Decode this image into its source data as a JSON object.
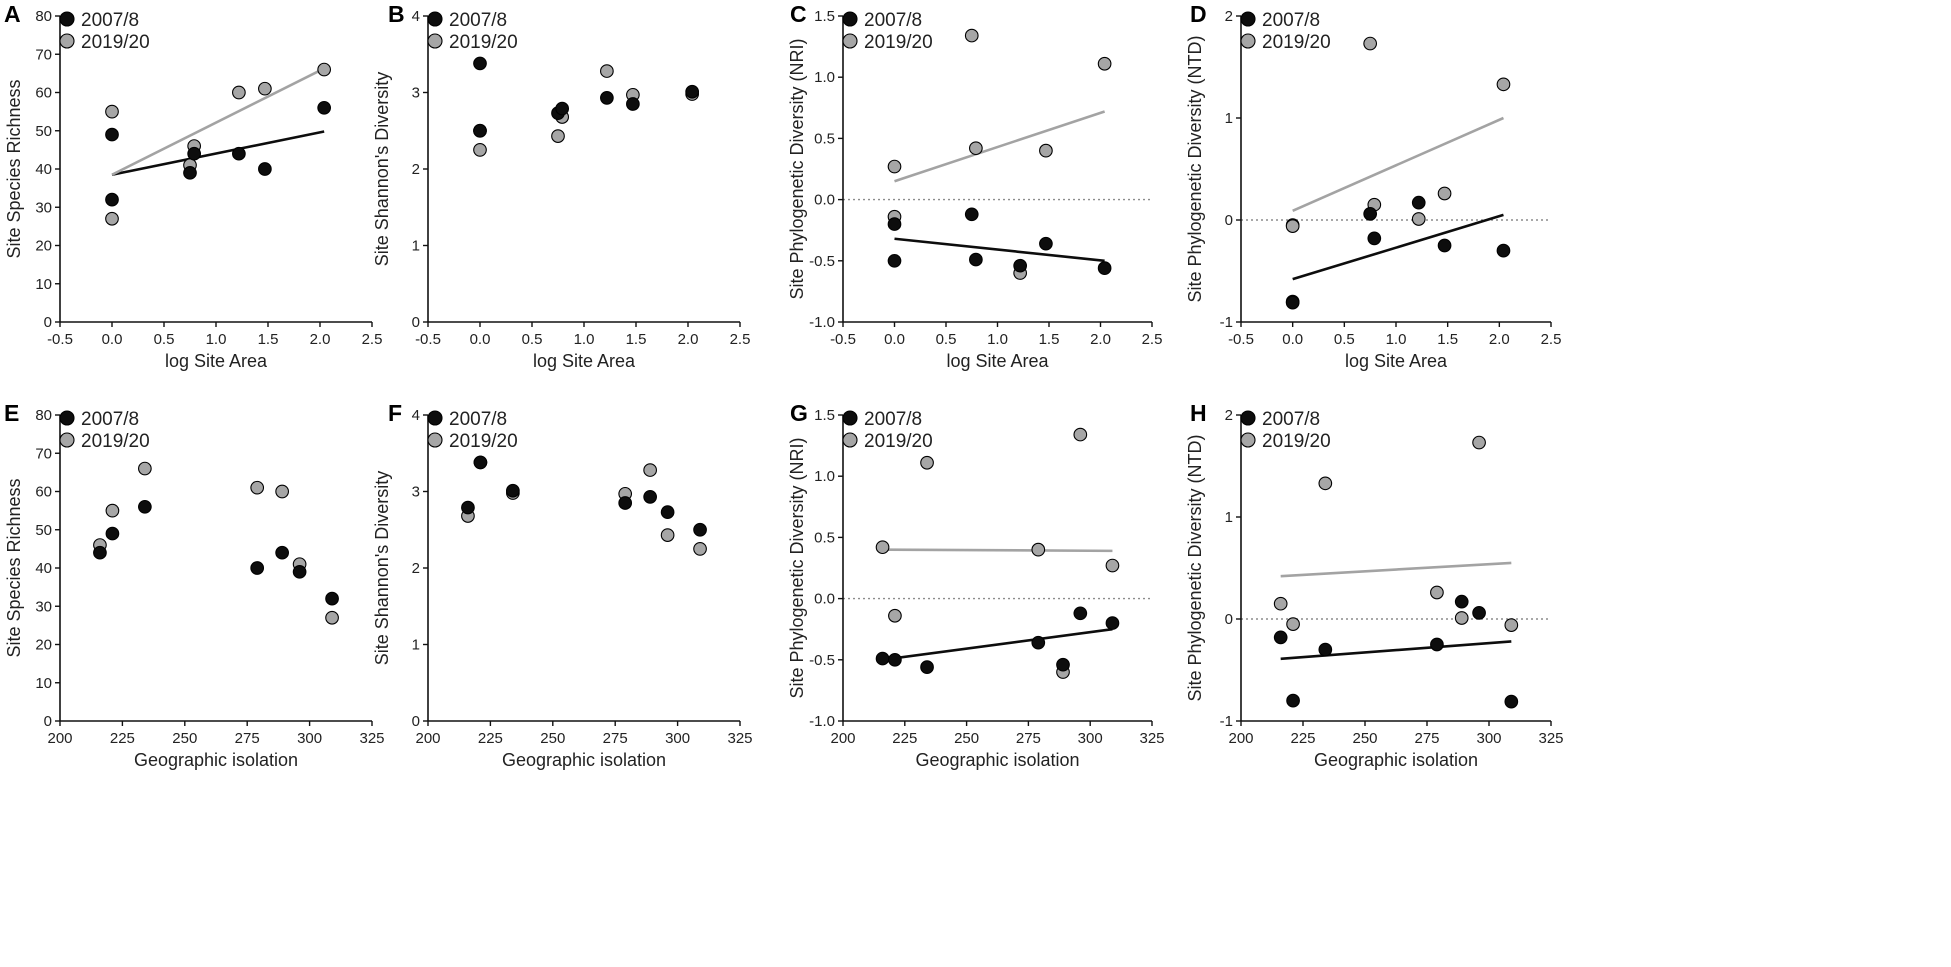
{
  "colors": {
    "series2007": "#0d0d0d",
    "series2019": "#a6a6a6",
    "line2019": "#a3a3a3",
    "axis": "#111111",
    "zero_line": "#8c8c8c"
  },
  "chart_data": [
    {
      "panel": "A",
      "type": "scatter",
      "xlabel": "log Site Area",
      "ylabel": "Site Species Richness",
      "xlim": [
        -0.5,
        2.5
      ],
      "ylim": [
        0,
        80
      ],
      "xticks": [
        -0.5,
        0,
        0.5,
        1,
        1.5,
        2,
        2.5
      ],
      "xtick_labels": [
        "-0.5",
        "0.0",
        "0.5",
        "1.0",
        "1.5",
        "2.0",
        "2.5"
      ],
      "yticks": [
        0,
        10,
        20,
        30,
        40,
        50,
        60,
        70,
        80
      ],
      "ytick_labels": [
        "0",
        "10",
        "20",
        "30",
        "40",
        "50",
        "60",
        "70",
        "80"
      ],
      "zero_line": false,
      "legend": [
        "2007/8",
        "2019/20"
      ],
      "series": [
        {
          "name": "2007/8",
          "x": [
            0.0,
            0.0,
            0.75,
            0.79,
            1.22,
            1.47,
            2.04
          ],
          "y": [
            32,
            49,
            39,
            44,
            44,
            40,
            56
          ],
          "fit": [
            [
              0.0,
              38.5
            ],
            [
              2.04,
              49.8
            ]
          ]
        },
        {
          "name": "2019/20",
          "x": [
            0.0,
            0.0,
            0.75,
            0.79,
            1.22,
            1.47,
            2.04
          ],
          "y": [
            27,
            55,
            41,
            46,
            60,
            61,
            66
          ],
          "fit": [
            [
              0.0,
              38.5
            ],
            [
              2.04,
              66.3
            ]
          ]
        }
      ]
    },
    {
      "panel": "B",
      "type": "scatter",
      "xlabel": "log Site Area",
      "ylabel": "Site Shannon's Diversity",
      "xlim": [
        -0.5,
        2.5
      ],
      "ylim": [
        0,
        4
      ],
      "xticks": [
        -0.5,
        0,
        0.5,
        1,
        1.5,
        2,
        2.5
      ],
      "xtick_labels": [
        "-0.5",
        "0.0",
        "0.5",
        "1.0",
        "1.5",
        "2.0",
        "2.5"
      ],
      "yticks": [
        0,
        1,
        2,
        3,
        4
      ],
      "ytick_labels": [
        "0",
        "1",
        "2",
        "3",
        "4"
      ],
      "zero_line": false,
      "legend": [
        "2007/8",
        "2019/20"
      ],
      "series": [
        {
          "name": "2007/8",
          "x": [
            0.0,
            0.0,
            0.75,
            0.79,
            1.22,
            1.47,
            2.04
          ],
          "y": [
            3.38,
            2.5,
            2.73,
            2.79,
            2.93,
            2.85,
            3.01
          ],
          "fit": null
        },
        {
          "name": "2019/20",
          "x": [
            0.0,
            0.0,
            0.75,
            0.79,
            1.22,
            1.47,
            2.04
          ],
          "y": [
            2.25,
            2.5,
            2.43,
            2.68,
            3.28,
            2.97,
            2.98
          ],
          "fit": null
        }
      ]
    },
    {
      "panel": "C",
      "type": "scatter",
      "xlabel": "log Site Area",
      "ylabel": "Site Phylogenetic Diversity (NRI)",
      "xlim": [
        -0.5,
        2.5
      ],
      "ylim": [
        -1.0,
        1.5
      ],
      "xticks": [
        -0.5,
        0,
        0.5,
        1,
        1.5,
        2,
        2.5
      ],
      "xtick_labels": [
        "-0.5",
        "0.0",
        "0.5",
        "1.0",
        "1.5",
        "2.0",
        "2.5"
      ],
      "yticks": [
        -1.0,
        -0.5,
        0,
        0.5,
        1.0,
        1.5
      ],
      "ytick_labels": [
        "-1.0",
        "-0.5",
        "0.0",
        "0.5",
        "1.0",
        "1.5"
      ],
      "zero_line": true,
      "legend": [
        "2007/8",
        "2019/20"
      ],
      "series": [
        {
          "name": "2007/8",
          "x": [
            0.0,
            0.0,
            0.75,
            0.79,
            1.22,
            1.47,
            2.04
          ],
          "y": [
            -0.2,
            -0.5,
            -0.12,
            -0.49,
            -0.54,
            -0.36,
            -0.56
          ],
          "fit": [
            [
              0.0,
              -0.32
            ],
            [
              2.04,
              -0.5
            ]
          ]
        },
        {
          "name": "2019/20",
          "x": [
            0.0,
            0.0,
            0.75,
            0.79,
            1.22,
            1.47,
            2.04
          ],
          "y": [
            0.27,
            -0.14,
            1.34,
            0.42,
            -0.6,
            0.4,
            1.11
          ],
          "fit": [
            [
              0.0,
              0.15
            ],
            [
              2.04,
              0.72
            ]
          ]
        }
      ]
    },
    {
      "panel": "D",
      "type": "scatter",
      "xlabel": "log Site Area",
      "ylabel": "Site Phylogenetic Diversity (NTD)",
      "xlim": [
        -0.5,
        2.5
      ],
      "ylim": [
        -1,
        2
      ],
      "xticks": [
        -0.5,
        0,
        0.5,
        1,
        1.5,
        2,
        2.5
      ],
      "xtick_labels": [
        "-0.5",
        "0.0",
        "0.5",
        "1.0",
        "1.5",
        "2.0",
        "2.5"
      ],
      "yticks": [
        -1,
        0,
        1,
        2
      ],
      "ytick_labels": [
        "-1",
        "0",
        "1",
        "2"
      ],
      "zero_line": true,
      "legend": [
        "2007/8",
        "2019/20"
      ],
      "series": [
        {
          "name": "2007/8",
          "x": [
            0.0,
            0.0,
            0.75,
            0.79,
            1.22,
            1.47,
            2.04
          ],
          "y": [
            -0.8,
            -0.81,
            0.06,
            -0.18,
            0.17,
            -0.25,
            -0.3
          ],
          "fit": [
            [
              0.0,
              -0.58
            ],
            [
              2.04,
              0.05
            ]
          ]
        },
        {
          "name": "2019/20",
          "x": [
            0.0,
            0.0,
            0.75,
            0.79,
            1.22,
            1.47,
            2.04
          ],
          "y": [
            -0.05,
            -0.06,
            1.73,
            0.15,
            0.01,
            0.26,
            1.33
          ],
          "fit": [
            [
              0.0,
              0.09
            ],
            [
              2.04,
              1.0
            ]
          ]
        }
      ]
    },
    {
      "panel": "E",
      "type": "scatter",
      "xlabel": "Geographic isolation",
      "ylabel": "Site Species Richness",
      "xlim": [
        200,
        325
      ],
      "ylim": [
        0,
        80
      ],
      "xticks": [
        200,
        225,
        250,
        275,
        300,
        325
      ],
      "xtick_labels": [
        "200",
        "225",
        "250",
        "275",
        "300",
        "325"
      ],
      "yticks": [
        0,
        10,
        20,
        30,
        40,
        50,
        60,
        70,
        80
      ],
      "ytick_labels": [
        "0",
        "10",
        "20",
        "30",
        "40",
        "50",
        "60",
        "70",
        "80"
      ],
      "zero_line": false,
      "legend": [
        "2007/8",
        "2019/20"
      ],
      "series": [
        {
          "name": "2007/8",
          "x": [
            216,
            221,
            234,
            279,
            289,
            296,
            309
          ],
          "y": [
            44,
            49,
            56,
            40,
            44,
            39,
            32
          ],
          "fit": null
        },
        {
          "name": "2019/20",
          "x": [
            216,
            221,
            234,
            279,
            289,
            296,
            309
          ],
          "y": [
            46,
            55,
            66,
            61,
            60,
            41,
            27
          ],
          "fit": null
        }
      ]
    },
    {
      "panel": "F",
      "type": "scatter",
      "xlabel": "Geographic isolation",
      "ylabel": "Site Shannon's Diversity",
      "xlim": [
        200,
        325
      ],
      "ylim": [
        0,
        4
      ],
      "xticks": [
        200,
        225,
        250,
        275,
        300,
        325
      ],
      "xtick_labels": [
        "200",
        "225",
        "250",
        "275",
        "300",
        "325"
      ],
      "yticks": [
        0,
        1,
        2,
        3,
        4
      ],
      "ytick_labels": [
        "0",
        "1",
        "2",
        "3",
        "4"
      ],
      "zero_line": false,
      "legend": [
        "2007/8",
        "2019/20"
      ],
      "series": [
        {
          "name": "2007/8",
          "x": [
            216,
            221,
            234,
            279,
            289,
            296,
            309
          ],
          "y": [
            2.79,
            3.38,
            3.01,
            2.85,
            2.93,
            2.73,
            2.5
          ],
          "fit": null
        },
        {
          "name": "2019/20",
          "x": [
            216,
            221,
            234,
            279,
            289,
            296,
            309
          ],
          "y": [
            2.68,
            3.38,
            2.98,
            2.97,
            3.28,
            2.43,
            2.25
          ],
          "fit": null
        }
      ]
    },
    {
      "panel": "G",
      "type": "scatter",
      "xlabel": "Geographic isolation",
      "ylabel": "Site Phylogenetic Diversity (NRI)",
      "xlim": [
        200,
        325
      ],
      "ylim": [
        -1.0,
        1.5
      ],
      "xticks": [
        200,
        225,
        250,
        275,
        300,
        325
      ],
      "xtick_labels": [
        "200",
        "225",
        "250",
        "275",
        "300",
        "325"
      ],
      "yticks": [
        -1.0,
        -0.5,
        0,
        0.5,
        1.0,
        1.5
      ],
      "ytick_labels": [
        "-1.0",
        "-0.5",
        "0.0",
        "0.5",
        "1.0",
        "1.5"
      ],
      "zero_line": true,
      "legend": [
        "2007/8",
        "2019/20"
      ],
      "series": [
        {
          "name": "2007/8",
          "x": [
            216,
            221,
            234,
            279,
            289,
            296,
            309
          ],
          "y": [
            -0.49,
            -0.5,
            -0.56,
            -0.36,
            -0.54,
            -0.12,
            -0.2
          ],
          "fit": [
            [
              216,
              -0.5
            ],
            [
              309,
              -0.25
            ]
          ]
        },
        {
          "name": "2019/20",
          "x": [
            216,
            221,
            234,
            279,
            289,
            296,
            309
          ],
          "y": [
            0.42,
            -0.14,
            1.11,
            0.4,
            -0.6,
            1.34,
            0.27
          ],
          "fit": [
            [
              216,
              0.4
            ],
            [
              309,
              0.39
            ]
          ]
        }
      ]
    },
    {
      "panel": "H",
      "type": "scatter",
      "xlabel": "Geographic isolation",
      "ylabel": "Site Phylogenetic Diversity (NTD)",
      "xlim": [
        200,
        325
      ],
      "ylim": [
        -1,
        2
      ],
      "xticks": [
        200,
        225,
        250,
        275,
        300,
        325
      ],
      "xtick_labels": [
        "200",
        "225",
        "250",
        "275",
        "300",
        "325"
      ],
      "yticks": [
        -1,
        0,
        1,
        2
      ],
      "ytick_labels": [
        "-1",
        "0",
        "1",
        "2"
      ],
      "zero_line": true,
      "legend": [
        "2007/8",
        "2019/20"
      ],
      "series": [
        {
          "name": "2007/8",
          "x": [
            216,
            221,
            234,
            279,
            289,
            296,
            309
          ],
          "y": [
            -0.18,
            -0.8,
            -0.3,
            -0.25,
            0.17,
            0.06,
            -0.81
          ],
          "fit": [
            [
              216,
              -0.39
            ],
            [
              309,
              -0.22
            ]
          ]
        },
        {
          "name": "2019/20",
          "x": [
            216,
            221,
            234,
            279,
            289,
            296,
            309
          ],
          "y": [
            0.15,
            -0.05,
            1.33,
            0.26,
            0.01,
            1.73,
            -0.06
          ],
          "fit": [
            [
              216,
              0.42
            ],
            [
              309,
              0.55
            ]
          ]
        }
      ]
    }
  ]
}
